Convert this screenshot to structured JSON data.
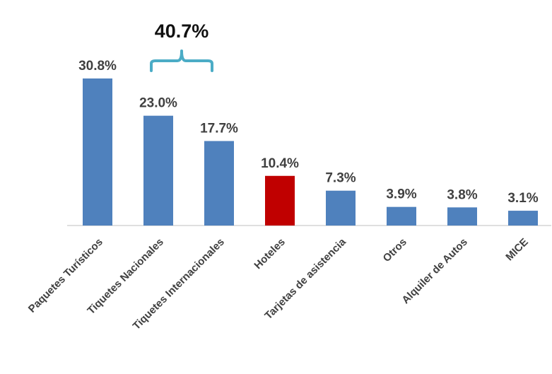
{
  "chart_data": {
    "type": "bar",
    "categories": [
      "Paquetes Turísticos",
      "Tiquetes Nacionales",
      "Tiquetes Internacionales",
      "Hoteles",
      "Tarjetas de asistencia",
      "Otros",
      "Alquiler de Autos",
      "MICE"
    ],
    "values": [
      30.8,
      23.0,
      17.7,
      10.4,
      7.3,
      3.9,
      3.8,
      3.1
    ],
    "value_labels": [
      "30.8%",
      "23.0%",
      "17.7%",
      "10.4%",
      "7.3%",
      "3.9%",
      "3.8%",
      "3.1%"
    ],
    "ylim": [
      0,
      30.8
    ],
    "grid": false,
    "legend": "none",
    "highlight_index": 3,
    "colors": {
      "bar": "#4F81BD",
      "highlight": "#C00000",
      "bracket": "#4BACC6"
    },
    "annotations": [
      {
        "text": "40.7%",
        "spans_categories": [
          "Tiquetes Nacionales",
          "Tiquetes Internacionales"
        ]
      }
    ]
  }
}
